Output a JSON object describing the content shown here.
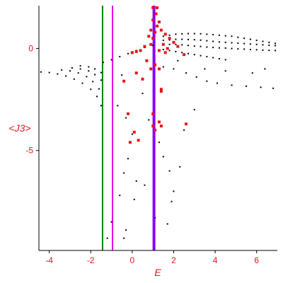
{
  "chart_data": {
    "type": "scatter",
    "title": "",
    "xlabel": "E",
    "ylabel": "<J3>",
    "xlim": [
      -4.5,
      7.0
    ],
    "ylim": [
      -9.9,
      2.1
    ],
    "xticks": [
      -4,
      -2,
      0,
      2,
      4,
      6
    ],
    "yticks": [
      0,
      -5
    ],
    "colors": {
      "axis": "#000000",
      "labels": "#e8141c",
      "black_points": "#000000",
      "red_points": "#e8141c",
      "line_green": "#008000",
      "line_magenta": "#e800e8",
      "line_blue": "#8800ff"
    },
    "vertical_lines": [
      {
        "x": -1.43,
        "color": "#008000"
      },
      {
        "x": -0.95,
        "color": "#e800e8"
      },
      {
        "x": 1.05,
        "color": "#8800ff"
      }
    ],
    "series": [
      {
        "values_kind": "black",
        "points": [
          [
            -4.4,
            -1.15
          ],
          [
            -4.0,
            -1.18
          ],
          [
            -3.6,
            -1.25
          ],
          [
            -3.2,
            -1.35
          ],
          [
            -2.8,
            -1.5
          ],
          [
            -2.4,
            -1.7
          ],
          [
            -2.0,
            -2.0
          ],
          [
            -1.7,
            -2.35
          ],
          [
            -1.5,
            -2.8
          ],
          [
            -3.4,
            -1.05
          ],
          [
            -3.0,
            -1.1
          ],
          [
            -2.6,
            -1.2
          ],
          [
            -2.2,
            -1.38
          ],
          [
            -1.9,
            -1.62
          ],
          [
            -1.6,
            -1.98
          ],
          [
            -2.9,
            -0.95
          ],
          [
            -2.5,
            -1.0
          ],
          [
            -2.1,
            -1.1
          ],
          [
            -1.8,
            -1.28
          ],
          [
            -1.5,
            -1.55
          ],
          [
            -2.5,
            -0.85
          ],
          [
            -2.1,
            -0.9
          ],
          [
            -1.8,
            -1.0
          ],
          [
            -1.5,
            -1.18
          ],
          [
            -1.4,
            -0.68
          ],
          [
            -1.0,
            -0.55
          ],
          [
            -0.6,
            -0.4
          ],
          [
            -0.2,
            -0.25
          ],
          [
            0.2,
            -0.1
          ],
          [
            0.6,
            0.05
          ],
          [
            1.0,
            0.15
          ],
          [
            1.5,
            0.6
          ],
          [
            1.8,
            0.65
          ],
          [
            2.1,
            0.7
          ],
          [
            2.4,
            0.72
          ],
          [
            2.7,
            0.73
          ],
          [
            3.0,
            0.73
          ],
          [
            3.3,
            0.72
          ],
          [
            3.6,
            0.7
          ],
          [
            3.9,
            0.68
          ],
          [
            4.2,
            0.65
          ],
          [
            4.5,
            0.62
          ],
          [
            4.8,
            0.6
          ],
          [
            5.1,
            0.55
          ],
          [
            5.4,
            0.5
          ],
          [
            5.7,
            0.45
          ],
          [
            6.0,
            0.4
          ],
          [
            6.3,
            0.35
          ],
          [
            6.6,
            0.3
          ],
          [
            6.9,
            0.25
          ],
          [
            1.5,
            0.4
          ],
          [
            1.8,
            0.42
          ],
          [
            2.1,
            0.45
          ],
          [
            2.4,
            0.45
          ],
          [
            2.7,
            0.44
          ],
          [
            3.0,
            0.43
          ],
          [
            3.3,
            0.41
          ],
          [
            3.6,
            0.38
          ],
          [
            3.9,
            0.35
          ],
          [
            4.2,
            0.32
          ],
          [
            4.5,
            0.3
          ],
          [
            4.8,
            0.28
          ],
          [
            5.1,
            0.26
          ],
          [
            5.4,
            0.24
          ],
          [
            5.7,
            0.22
          ],
          [
            6.0,
            0.2
          ],
          [
            6.3,
            0.18
          ],
          [
            6.6,
            0.16
          ],
          [
            6.9,
            0.14
          ],
          [
            1.5,
            0.2
          ],
          [
            1.8,
            0.2
          ],
          [
            2.1,
            0.2
          ],
          [
            2.4,
            0.18
          ],
          [
            2.7,
            0.15
          ],
          [
            3.0,
            0.12
          ],
          [
            3.3,
            0.1
          ],
          [
            3.6,
            0.07
          ],
          [
            3.9,
            0.05
          ],
          [
            4.2,
            0.03
          ],
          [
            4.5,
            0.02
          ],
          [
            4.8,
            0.0
          ],
          [
            5.1,
            -0.02
          ],
          [
            5.4,
            -0.03
          ],
          [
            5.7,
            -0.05
          ],
          [
            6.0,
            -0.06
          ],
          [
            6.3,
            -0.08
          ],
          [
            6.6,
            -0.09
          ],
          [
            6.9,
            -0.1
          ],
          [
            1.5,
            -0.05
          ],
          [
            1.8,
            -0.1
          ],
          [
            2.1,
            -0.15
          ],
          [
            2.4,
            -0.2
          ],
          [
            2.7,
            -0.25
          ],
          [
            3.0,
            -0.3
          ],
          [
            3.3,
            -0.35
          ],
          [
            3.6,
            -0.4
          ],
          [
            3.9,
            -0.45
          ],
          [
            4.2,
            -0.5
          ],
          [
            4.5,
            -0.55
          ],
          [
            2.0,
            -1.0
          ],
          [
            2.6,
            -1.2
          ],
          [
            3.1,
            -1.4
          ],
          [
            3.6,
            -1.6
          ],
          [
            4.1,
            -1.7
          ],
          [
            4.8,
            -1.8
          ],
          [
            5.5,
            -1.85
          ],
          [
            6.2,
            -1.9
          ],
          [
            6.8,
            -1.95
          ],
          [
            1.5,
            -0.9
          ],
          [
            2.2,
            -0.6
          ],
          [
            3.5,
            -1.0
          ],
          [
            4.5,
            -1.1
          ],
          [
            5.8,
            -1.2
          ],
          [
            6.4,
            -1.0
          ],
          [
            -0.5,
            -1.3
          ],
          [
            -0.7,
            -2.8
          ],
          [
            -0.3,
            -3.4
          ],
          [
            0.0,
            -4.2
          ],
          [
            -0.2,
            -5.4
          ],
          [
            -0.4,
            -6.1
          ],
          [
            0.2,
            -6.5
          ],
          [
            -0.6,
            -7.2
          ],
          [
            0.1,
            -7.4
          ],
          [
            -1.0,
            -8.5
          ],
          [
            -0.3,
            -8.9
          ],
          [
            -1.2,
            -9.3
          ],
          [
            -0.4,
            -9.3
          ],
          [
            0.5,
            -2.2
          ],
          [
            0.8,
            -3.5
          ],
          [
            1.3,
            -4.6
          ],
          [
            1.5,
            -5.3
          ],
          [
            1.8,
            -6.0
          ],
          [
            2.0,
            -7.0
          ],
          [
            1.9,
            -7.5
          ],
          [
            1.7,
            -8.6
          ],
          [
            2.3,
            -5.8
          ],
          [
            2.5,
            -4.0
          ],
          [
            3.0,
            -3.0
          ],
          [
            0.6,
            -6.7
          ],
          [
            1.1,
            -8.3
          ]
        ]
      },
      {
        "values_kind": "red",
        "points": [
          [
            0.9,
            0.2
          ],
          [
            1.0,
            0.5
          ],
          [
            1.1,
            0.8
          ],
          [
            1.2,
            1.1
          ],
          [
            0.8,
            0.6
          ],
          [
            1.3,
            1.3
          ],
          [
            0.9,
            0.9
          ],
          [
            1.0,
            1.4
          ],
          [
            1.15,
            1.7
          ],
          [
            1.0,
            2.0
          ],
          [
            1.2,
            2.0
          ],
          [
            0.6,
            0.1
          ],
          [
            0.4,
            -0.1
          ],
          [
            0.2,
            -0.15
          ],
          [
            0.0,
            -0.2
          ],
          [
            1.4,
            0.9
          ],
          [
            1.6,
            0.7
          ],
          [
            1.8,
            0.5
          ],
          [
            2.0,
            0.3
          ],
          [
            2.2,
            0.1
          ],
          [
            2.5,
            -0.3
          ],
          [
            1.5,
            0.2
          ],
          [
            1.7,
            0.0
          ],
          [
            1.3,
            -0.1
          ],
          [
            1.6,
            -0.2
          ],
          [
            0.7,
            -0.6
          ],
          [
            0.9,
            -1.0
          ],
          [
            1.1,
            -0.8
          ],
          [
            1.3,
            -1.0
          ],
          [
            0.5,
            -1.5
          ],
          [
            1.0,
            -3.2
          ],
          [
            1.4,
            -2.0
          ],
          [
            1.4,
            -3.8
          ],
          [
            -0.2,
            -3.2
          ],
          [
            0.1,
            -4.1
          ],
          [
            -0.1,
            -4.6
          ],
          [
            0.3,
            -4.5
          ],
          [
            1.0,
            -3.8
          ],
          [
            1.3,
            -3.6
          ],
          [
            1.1,
            -4.0
          ],
          [
            2.6,
            -3.7
          ],
          [
            1.4,
            -2.1
          ],
          [
            -0.4,
            -1.6
          ],
          [
            0.2,
            -1.2
          ]
        ]
      }
    ]
  }
}
